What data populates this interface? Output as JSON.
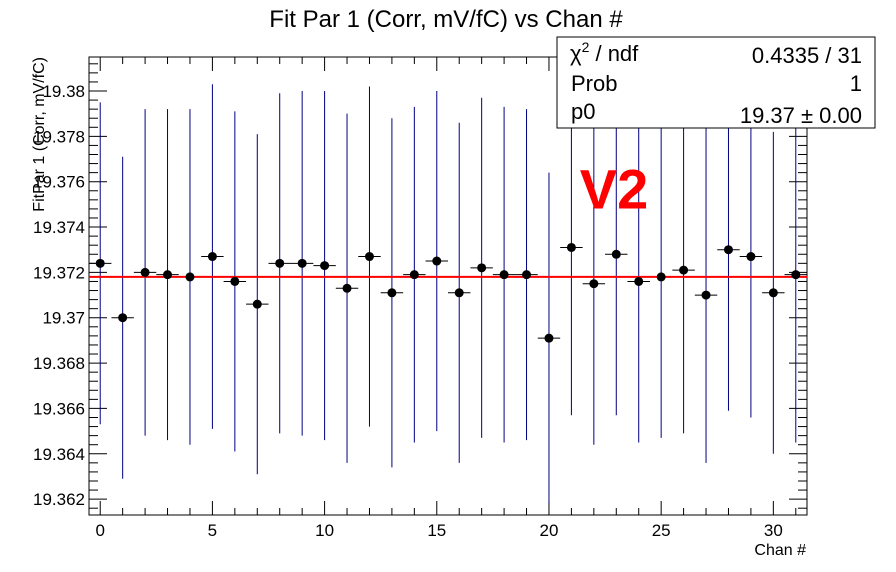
{
  "chart_data": {
    "type": "scatter",
    "title": "Fit Par 1 (Corr, mV/fC) vs Chan #",
    "xlabel": "Chan #",
    "ylabel": "FitPar 1 (Corr, mV/fC)",
    "xlim": [
      -0.5,
      31.5
    ],
    "ylim": [
      19.3613,
      19.3815
    ],
    "x_ticks": [
      0,
      5,
      10,
      15,
      20,
      25,
      30
    ],
    "x_tick_labels": [
      "0",
      "5",
      "10",
      "15",
      "20",
      "25",
      "30"
    ],
    "y_ticks": [
      19.362,
      19.364,
      19.366,
      19.368,
      19.37,
      19.372,
      19.374,
      19.376,
      19.378,
      19.38
    ],
    "y_tick_labels": [
      "19.362",
      "19.364",
      "19.366",
      "19.368",
      "19.37",
      "19.372",
      "19.374",
      "19.376",
      "19.378",
      "19.38"
    ],
    "grid": false,
    "series": [
      {
        "x": [
          0,
          1,
          2,
          3,
          4,
          5,
          6,
          7,
          8,
          9,
          10,
          11,
          12,
          13,
          14,
          15,
          16,
          17,
          18,
          19,
          20,
          21,
          22,
          23,
          24,
          25,
          26,
          27,
          28,
          29,
          30,
          31
        ],
        "y": [
          19.3724,
          19.37,
          19.372,
          19.3719,
          19.3718,
          19.3727,
          19.3716,
          19.3706,
          19.3724,
          19.3724,
          19.3723,
          19.3713,
          19.3727,
          19.3711,
          19.3719,
          19.3725,
          19.3711,
          19.3722,
          19.3719,
          19.3719,
          19.3691,
          19.3731,
          19.3715,
          19.3728,
          19.3716,
          19.3718,
          19.3721,
          19.371,
          19.373,
          19.3727,
          19.3711,
          19.3719
        ],
        "y_err": [
          0.0071,
          0.0071,
          0.0072,
          0.0073,
          0.0074,
          0.0076,
          0.0075,
          0.0075,
          0.0075,
          0.0076,
          0.0077,
          0.0077,
          0.0075,
          0.0077,
          0.0074,
          0.0075,
          0.0075,
          0.0075,
          0.0074,
          0.0073,
          0.0073,
          0.0074,
          0.0071,
          0.0071,
          0.0071,
          0.0071,
          0.0072,
          0.0074,
          0.0071,
          0.0071,
          0.0071,
          0.0074
        ],
        "x_err": 0.5,
        "marker_color": "#000000",
        "error_color": "#000080"
      }
    ],
    "fit_line": {
      "y": 19.3718,
      "color": "#ff0000"
    },
    "stats_box": {
      "position": "top-right",
      "rows": [
        {
          "label_base": "χ",
          "label_sup": "2",
          "label_rest": " / ndf",
          "value": "0.4335 / 31"
        },
        {
          "label": "Prob",
          "value": "1"
        },
        {
          "label": "p0",
          "value": "19.37 ± 0.00"
        }
      ]
    },
    "annotation": {
      "text": "V2",
      "color": "#ff0000",
      "x": 22.9,
      "y": 19.3757
    }
  }
}
